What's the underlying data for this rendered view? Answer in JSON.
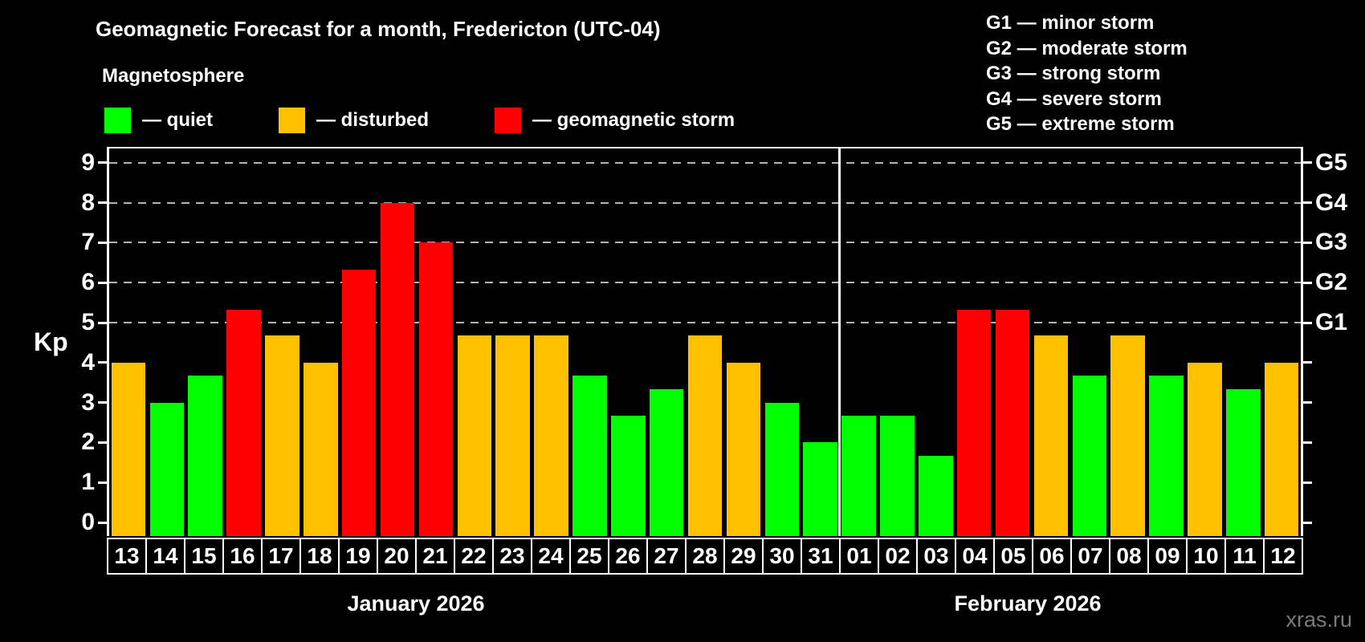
{
  "title": "Geomagnetic Forecast for a month, Fredericton (UTC-04)",
  "subtitle": "Magnetosphere",
  "legend": {
    "items": [
      {
        "key": "quiet",
        "label": "— quiet",
        "color": "#00ff00"
      },
      {
        "key": "disturbed",
        "label": "— disturbed",
        "color": "#ffc000"
      },
      {
        "key": "storm",
        "label": "— geomagnetic storm",
        "color": "#ff0000"
      }
    ]
  },
  "g_scale_legend": [
    "G1 — minor storm",
    "G2 — moderate storm",
    "G3 — strong storm",
    "G4 — severe storm",
    "G5 — extreme storm"
  ],
  "axes": {
    "y_label": "Kp",
    "y_ticks": [
      0,
      1,
      2,
      3,
      4,
      5,
      6,
      7,
      8,
      9
    ],
    "gridline_values": [
      5,
      6,
      7,
      8,
      9
    ],
    "right_axis_labels": [
      {
        "value": 5,
        "label": "G1"
      },
      {
        "value": 6,
        "label": "G2"
      },
      {
        "value": 7,
        "label": "G3"
      },
      {
        "value": 8,
        "label": "G4"
      },
      {
        "value": 9,
        "label": "G5"
      }
    ]
  },
  "months": [
    {
      "label": "January 2026",
      "days": 19
    },
    {
      "label": "February 2026",
      "days": 12
    }
  ],
  "watermark": "xras.ru",
  "chart_data": {
    "type": "bar",
    "title": "Geomagnetic Forecast for a month, Fredericton (UTC-04)",
    "xlabel": "",
    "ylabel": "Kp",
    "ylim": [
      0,
      9.6
    ],
    "grid": "horizontal dashed lines at Kp 5,6,7,8,9 (G1–G5)",
    "legend_position": "top-left",
    "colors": {
      "quiet": "#00ff00",
      "disturbed": "#ffc000",
      "storm": "#ff0000"
    },
    "categories": [
      "13",
      "14",
      "15",
      "16",
      "17",
      "18",
      "19",
      "20",
      "21",
      "22",
      "23",
      "24",
      "25",
      "26",
      "27",
      "28",
      "29",
      "30",
      "31",
      "01",
      "02",
      "03",
      "04",
      "05",
      "06",
      "07",
      "08",
      "09",
      "10",
      "11",
      "12"
    ],
    "values": [
      4.0,
      3.0,
      3.67,
      5.33,
      4.67,
      4.0,
      6.33,
      8.0,
      7.0,
      4.67,
      4.67,
      4.67,
      3.67,
      2.67,
      3.33,
      4.67,
      4.0,
      3.0,
      2.0,
      2.67,
      2.67,
      1.67,
      5.33,
      5.33,
      4.67,
      3.67,
      4.67,
      3.67,
      4.0,
      3.33,
      4.0
    ],
    "statuses": [
      "disturbed",
      "quiet",
      "quiet",
      "storm",
      "disturbed",
      "disturbed",
      "storm",
      "storm",
      "storm",
      "disturbed",
      "disturbed",
      "disturbed",
      "quiet",
      "quiet",
      "quiet",
      "disturbed",
      "disturbed",
      "quiet",
      "quiet",
      "quiet",
      "quiet",
      "quiet",
      "storm",
      "storm",
      "disturbed",
      "quiet",
      "disturbed",
      "quiet",
      "disturbed",
      "quiet",
      "disturbed"
    ]
  }
}
